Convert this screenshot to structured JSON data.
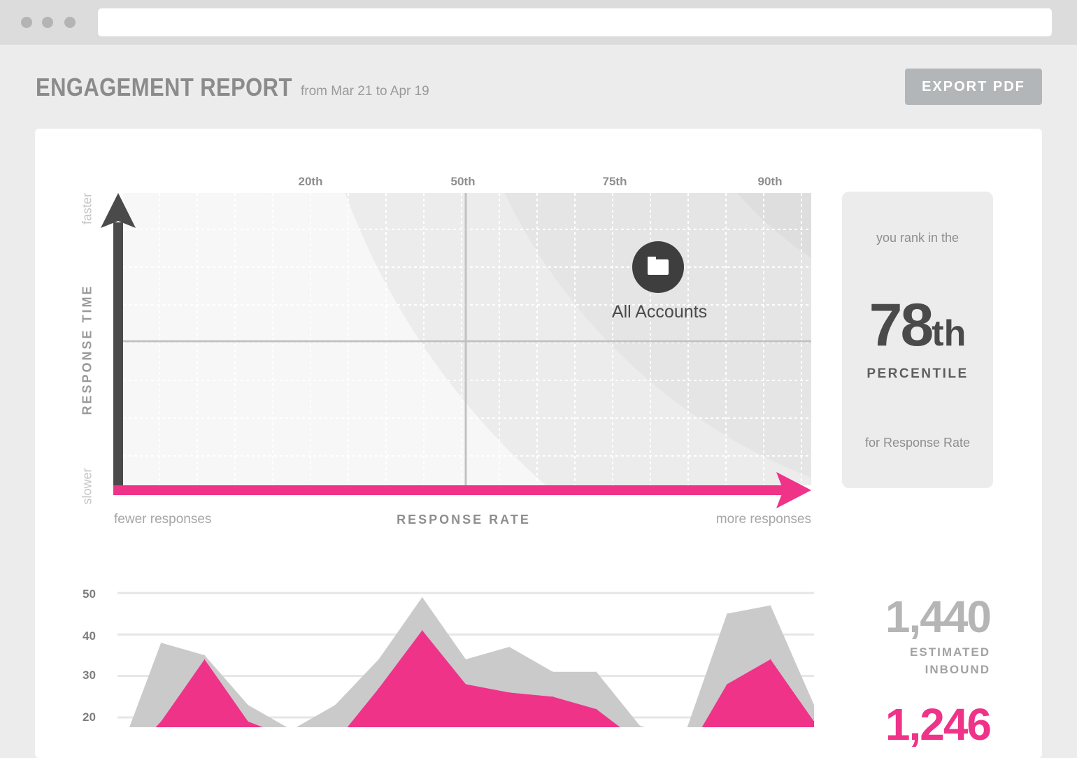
{
  "report": {
    "title": "ENGAGEMENT REPORT",
    "date_range": "from Mar 21 to Apr 19",
    "export_label": "EXPORT PDF"
  },
  "quadrant": {
    "percentile_marks": [
      "20th",
      "50th",
      "75th",
      "90th"
    ],
    "y_label": "RESPONSE TIME",
    "y_top": "faster",
    "y_bottom": "slower",
    "x_label": "RESPONSE RATE",
    "x_left": "fewer responses",
    "x_right": "more responses",
    "marker_label": "All Accounts",
    "marker_icon": "folder-icon",
    "accent_color": "#ef3389",
    "axis_color": "#4a4a4a"
  },
  "rank": {
    "pre": "you rank in the",
    "value": "78",
    "suffix": "th",
    "word": "PERCENTILE",
    "post": "for Response Rate"
  },
  "chart_data": {
    "type": "area",
    "y_ticks": [
      "50",
      "40",
      "30",
      "20"
    ],
    "ylim": [
      20,
      50
    ],
    "x": [
      0,
      1,
      2,
      3,
      4,
      5,
      6,
      7,
      8,
      9,
      10,
      11,
      12,
      13,
      14,
      15,
      16
    ],
    "series": [
      {
        "color": "#cacaca",
        "values": [
          10,
          38,
          35,
          23,
          17,
          23,
          34,
          49,
          34,
          37,
          31,
          31,
          18,
          15,
          45,
          47,
          23
        ]
      },
      {
        "color": "#ef3389",
        "values": [
          8,
          19,
          34,
          19,
          15,
          14,
          27,
          41,
          28,
          26,
          25,
          22,
          14,
          10,
          28,
          34,
          19
        ]
      }
    ]
  },
  "stats": {
    "estimated_inbound_value": "1,440",
    "estimated_inbound_label_1": "ESTIMATED",
    "estimated_inbound_label_2": "INBOUND",
    "second_value": "1,246"
  }
}
